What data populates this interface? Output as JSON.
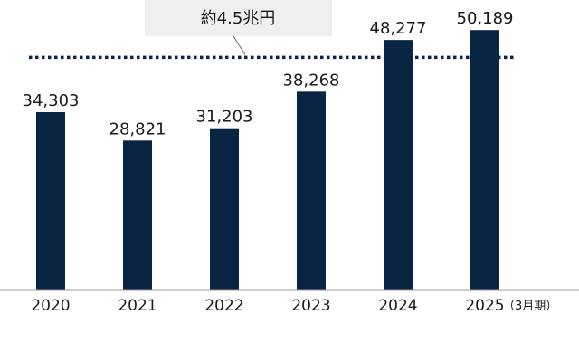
{
  "chart_data": {
    "type": "bar",
    "categories": [
      "2020",
      "2021",
      "2022",
      "2023",
      "2024",
      "2025"
    ],
    "category_suffix": "（3月期）",
    "values": [
      34303,
      28821,
      31203,
      38268,
      48277,
      50189
    ],
    "value_labels": [
      "34,303",
      "28,821",
      "31,203",
      "38,268",
      "48,277",
      "50,189"
    ],
    "ylim": [
      0,
      56000
    ],
    "reference_line": {
      "value": 45000,
      "label": "約4.5兆円",
      "style": "dotted"
    },
    "grid": false,
    "legend": "none",
    "title": "",
    "xlabel": "",
    "ylabel": ""
  },
  "colors": {
    "bar": "#0a2444",
    "reference_line": "#0a2444",
    "callout_bg": "#efefef",
    "axis": "#999999"
  }
}
